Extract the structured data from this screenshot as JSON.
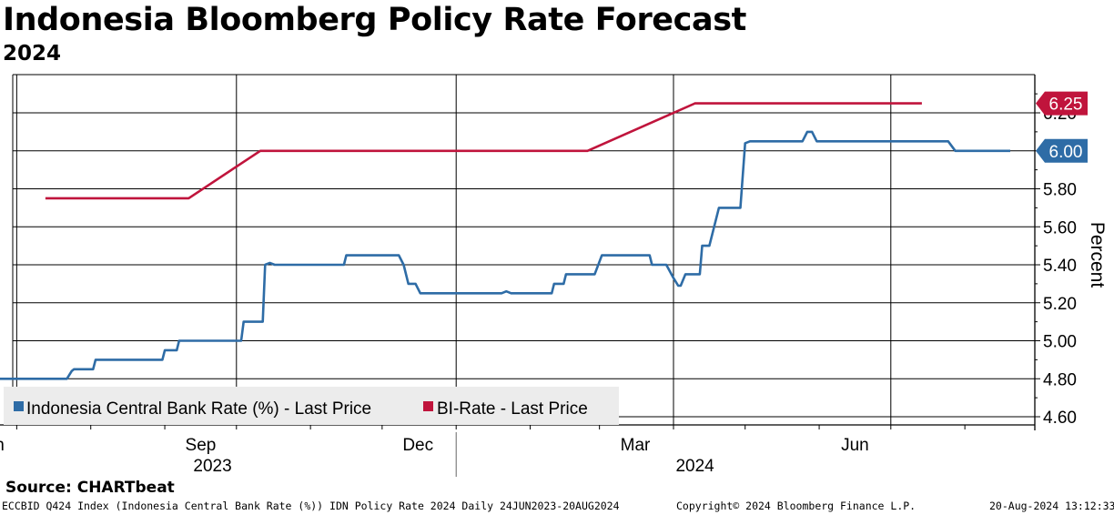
{
  "header": {
    "title": "Indonesia Bloomberg Policy Rate Forecast",
    "subtitle": "2024"
  },
  "chart_data": {
    "type": "line",
    "title": "Indonesia Bloomberg Policy Rate Forecast",
    "subtitle": "2024",
    "ylabel": "Percent",
    "ylim": [
      4.58,
      6.42
    ],
    "yticks": [
      "4.60",
      "4.80",
      "5.00",
      "5.20",
      "5.40",
      "5.60",
      "5.80",
      "6.00",
      "6.20"
    ],
    "xlabels": [
      "Jun",
      "Sep",
      "Dec",
      "Mar",
      "Jun"
    ],
    "years": [
      "2023",
      "2024"
    ],
    "x_start": "24JUN2023",
    "x_end": "20AUG2024",
    "legend_position": "bottom-left",
    "grid": true,
    "series": [
      {
        "name": "Indonesia Central Bank Rate (%) - Last Price",
        "color": "#2e6ca6",
        "last_value": "6.00",
        "points": [
          [
            "2023-06-24",
            4.8
          ],
          [
            "2023-07-22",
            4.8
          ],
          [
            "2023-07-24",
            4.84
          ],
          [
            "2023-07-25",
            4.85
          ],
          [
            "2023-08-02",
            4.85
          ],
          [
            "2023-08-03",
            4.9
          ],
          [
            "2023-08-31",
            4.9
          ],
          [
            "2023-09-01",
            4.95
          ],
          [
            "2023-09-06",
            4.95
          ],
          [
            "2023-09-07",
            5.0
          ],
          [
            "2023-10-03",
            5.0
          ],
          [
            "2023-10-04",
            5.1
          ],
          [
            "2023-10-12",
            5.1
          ],
          [
            "2023-10-13",
            5.4
          ],
          [
            "2023-10-15",
            5.41
          ],
          [
            "2023-10-17",
            5.4
          ],
          [
            "2023-11-15",
            5.4
          ],
          [
            "2023-11-16",
            5.45
          ],
          [
            "2023-12-08",
            5.45
          ],
          [
            "2023-12-10",
            5.4
          ],
          [
            "2023-12-12",
            5.3
          ],
          [
            "2023-12-15",
            5.3
          ],
          [
            "2023-12-17",
            5.25
          ],
          [
            "2024-01-20",
            5.25
          ],
          [
            "2024-01-22",
            5.26
          ],
          [
            "2024-01-24",
            5.25
          ],
          [
            "2024-02-10",
            5.25
          ],
          [
            "2024-02-11",
            5.3
          ],
          [
            "2024-02-15",
            5.3
          ],
          [
            "2024-02-16",
            5.35
          ],
          [
            "2024-02-28",
            5.35
          ],
          [
            "2024-03-02",
            5.45
          ],
          [
            "2024-03-22",
            5.45
          ],
          [
            "2024-03-23",
            5.4
          ],
          [
            "2024-03-29",
            5.4
          ],
          [
            "2024-04-01",
            5.33
          ],
          [
            "2024-04-03",
            5.29
          ],
          [
            "2024-04-04",
            5.29
          ],
          [
            "2024-04-06",
            5.35
          ],
          [
            "2024-04-12",
            5.35
          ],
          [
            "2024-04-13",
            5.5
          ],
          [
            "2024-04-16",
            5.5
          ],
          [
            "2024-04-20",
            5.7
          ],
          [
            "2024-04-29",
            5.7
          ],
          [
            "2024-05-01",
            6.04
          ],
          [
            "2024-05-03",
            6.05
          ],
          [
            "2024-05-25",
            6.05
          ],
          [
            "2024-05-27",
            6.1
          ],
          [
            "2024-05-29",
            6.1
          ],
          [
            "2024-05-31",
            6.05
          ],
          [
            "2024-07-25",
            6.05
          ],
          [
            "2024-07-28",
            6.0
          ],
          [
            "2024-08-20",
            6.0
          ]
        ]
      },
      {
        "name": "BI-Rate - Last Price",
        "color": "#c0143c",
        "last_value": "6.25",
        "points": [
          [
            "2023-07-13",
            5.75
          ],
          [
            "2023-09-11",
            5.75
          ],
          [
            "2023-10-11",
            6.0
          ],
          [
            "2024-02-25",
            6.0
          ],
          [
            "2024-04-10",
            6.25
          ],
          [
            "2024-07-14",
            6.25
          ]
        ]
      }
    ]
  },
  "source": "Source: CHARTbeat",
  "footer": {
    "left": "ECCBID Q424 Index (Indonesia Central Bank Rate (%)) IDN Policy Rate 2024  Daily 24JUN2023-20AUG2024",
    "middle": "Copyright© 2024 Bloomberg Finance L.P.",
    "right": "20-Aug-2024 13:12:33"
  }
}
